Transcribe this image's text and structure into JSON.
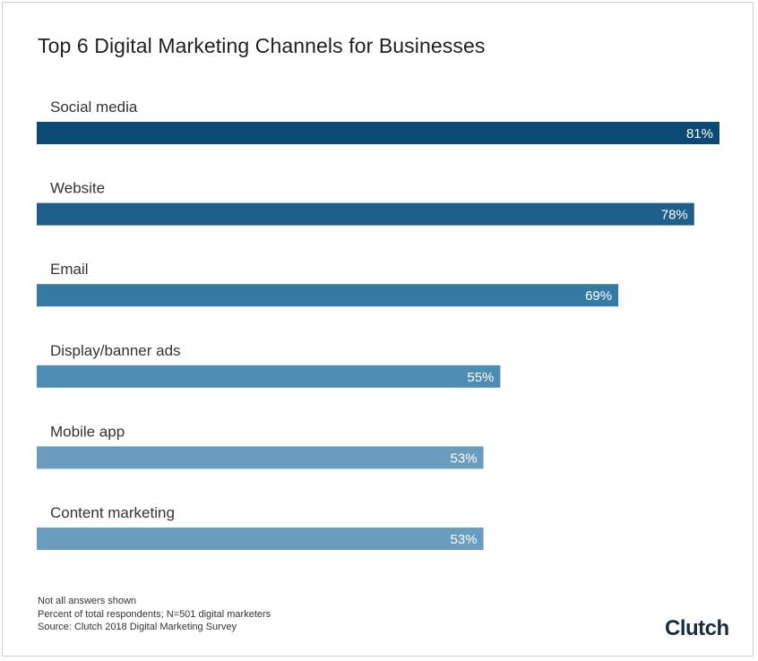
{
  "title": "Top 6 Digital Marketing Channels for Businesses",
  "notes": [
    "Not all answers shown",
    "Percent of total respondents; N=501 digital marketers",
    "Source: Clutch 2018 Digital Marketing Survey"
  ],
  "brand": "Clutch",
  "chart_data": {
    "type": "bar",
    "orientation": "horizontal",
    "title": "Top 6 Digital Marketing Channels for Businesses",
    "categories": [
      "Social media",
      "Website",
      "Email",
      "Display/banner ads",
      "Mobile app",
      "Content marketing"
    ],
    "values": [
      81,
      78,
      69,
      55,
      53,
      53
    ],
    "value_labels": [
      "81%",
      "78%",
      "69%",
      "55%",
      "53%",
      "53%"
    ],
    "colors": [
      "#0b4a75",
      "#1e5f8c",
      "#357aa3",
      "#4f8cb4",
      "#6a9cbd",
      "#6a9cbd"
    ],
    "xlim": [
      0,
      81
    ],
    "grid": false,
    "legend": "none"
  }
}
